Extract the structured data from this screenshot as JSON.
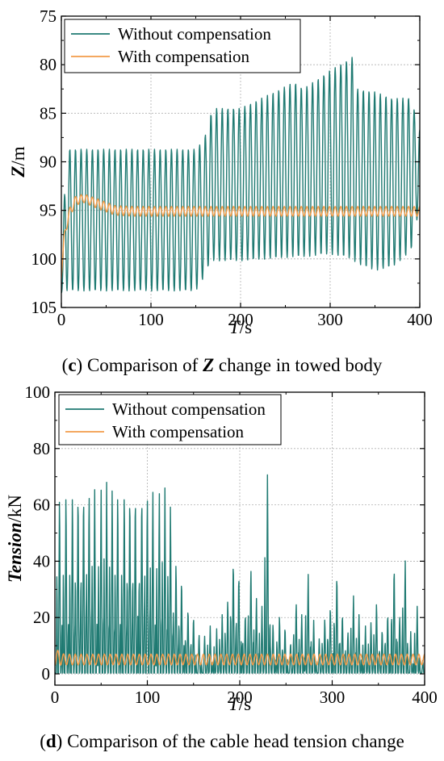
{
  "colors": {
    "without": "#1f7a72",
    "with": "#f39c4a",
    "grid": "#b0b0b0"
  },
  "captions": [
    {
      "tag": "c",
      "pre": "Comparison of ",
      "sym": "Z",
      "post": " change in towed body"
    },
    {
      "tag": "d",
      "pre": "Comparison of the cable head tension change",
      "sym": "",
      "post": ""
    }
  ],
  "chart_data": [
    {
      "type": "line",
      "title": "",
      "xlabel": {
        "sym": "T",
        "unit": "/s"
      },
      "ylabel": {
        "sym": "Z",
        "unit": "/m"
      },
      "xlim": [
        0,
        400
      ],
      "ylim": [
        75,
        105
      ],
      "y_inverted": true,
      "x_ticks": [
        0,
        100,
        200,
        300,
        400
      ],
      "y_ticks": [
        75,
        80,
        85,
        90,
        95,
        100,
        105
      ],
      "grid": true,
      "legend_position": "top-left",
      "series": [
        {
          "name": "Without compensation",
          "period_s": 6.3,
          "envelope_x": [
            0,
            5,
            150,
            155,
            160,
            165,
            170,
            200,
            260,
            270,
            300,
            325,
            330,
            350,
            370,
            390,
            400
          ],
          "envelope_max": [
            103.5,
            88.7,
            88.7,
            88.2,
            87.5,
            85.5,
            84.5,
            84.5,
            81.8,
            82.5,
            80.6,
            79.2,
            82.5,
            82.8,
            83.5,
            83.4,
            86.7
          ],
          "envelope_min": [
            103.5,
            103.3,
            103.3,
            102.5,
            101.8,
            100.5,
            100.2,
            100.2,
            99.8,
            99.8,
            99.5,
            100.0,
            100.5,
            101.2,
            100.8,
            99.2,
            94.5
          ]
        },
        {
          "name": "With compensation",
          "period_s": 6.3,
          "envelope_x": [
            0,
            3,
            8,
            15,
            25,
            40,
            60,
            80,
            400
          ],
          "envelope_max": [
            102.0,
            97.5,
            95.0,
            93.6,
            93.3,
            93.8,
            94.5,
            94.6,
            94.6
          ],
          "envelope_min": [
            102.0,
            98.0,
            96.2,
            94.5,
            94.2,
            94.8,
            95.5,
            95.6,
            95.6
          ]
        }
      ]
    },
    {
      "type": "line",
      "title": "",
      "xlabel": {
        "sym": "T",
        "unit": "/s"
      },
      "ylabel": {
        "sym": "Tension",
        "unit": "/kN"
      },
      "xlim": [
        0,
        400
      ],
      "ylim": [
        -4,
        100
      ],
      "x_ticks": [
        0,
        100,
        200,
        300,
        400
      ],
      "y_ticks": [
        0,
        20,
        40,
        60,
        80,
        100
      ],
      "grid": true,
      "legend_position": "top-left",
      "series": [
        {
          "name": "Without compensation",
          "period_s": 6.3,
          "baseline": 0,
          "spike_peaks_x": [
            5,
            12,
            19,
            25,
            31,
            37,
            43,
            50,
            56,
            62,
            68,
            75,
            81,
            87,
            94,
            100,
            106,
            113,
            119,
            125,
            131,
            137,
            144,
            150,
            156,
            162,
            168,
            175,
            181,
            187,
            193,
            199,
            206,
            212,
            218,
            224,
            230,
            236,
            243,
            249,
            255,
            261,
            267,
            274,
            280,
            286,
            292,
            298,
            305,
            311,
            317,
            323,
            329,
            336,
            342,
            348,
            354,
            360,
            367,
            373,
            379,
            385,
            392,
            398
          ],
          "spike_peaks_y": [
            67,
            68,
            68,
            68.5,
            68.5,
            68.5,
            68.5,
            68.3,
            68,
            68,
            68,
            68,
            68,
            68,
            68,
            67.5,
            67.5,
            67,
            66,
            62,
            42,
            36,
            25,
            22,
            15,
            14,
            17,
            16,
            22,
            28,
            43,
            38,
            23,
            40,
            28,
            24,
            74,
            19,
            22,
            18,
            12,
            27,
            22,
            37,
            19,
            13,
            21,
            26,
            38,
            23,
            16,
            29,
            21,
            17,
            19,
            27,
            17,
            23,
            41,
            22,
            42,
            15,
            24,
            5
          ]
        },
        {
          "name": "With compensation",
          "period_s": 6.3,
          "envelope_x": [
            0,
            10,
            400
          ],
          "envelope_max": [
            9,
            7,
            7
          ],
          "envelope_min": [
            3,
            3.2,
            3.2
          ]
        }
      ]
    }
  ]
}
